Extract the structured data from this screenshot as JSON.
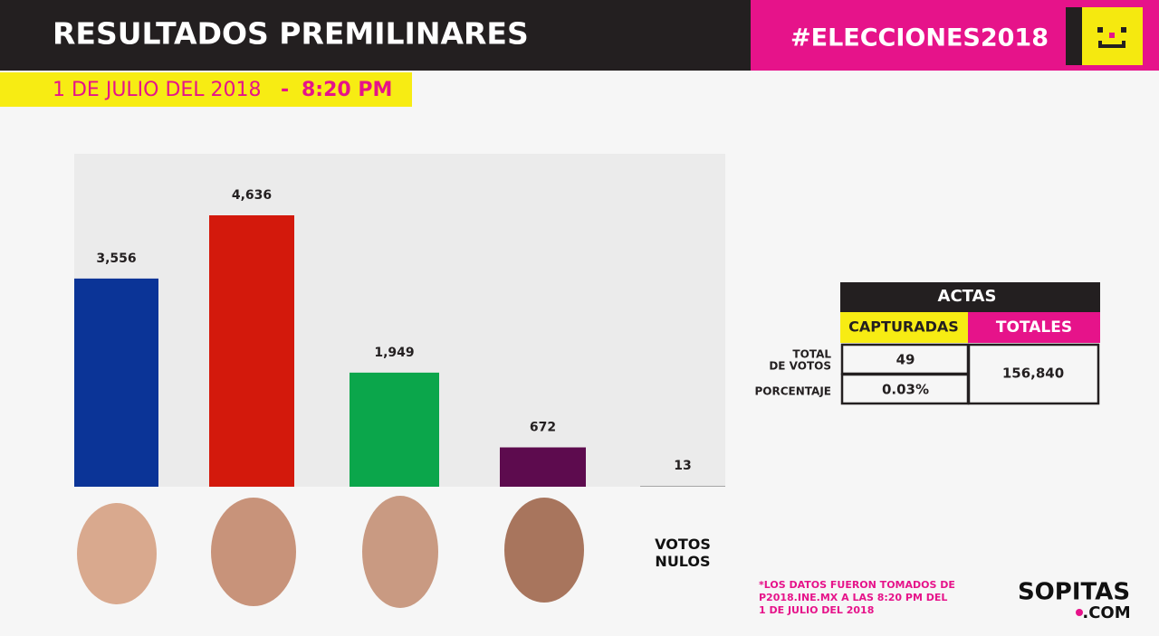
{
  "header": {
    "title": "RESULTADOS PREMILINARES",
    "hashtag": "#ELECCIONES2018",
    "date": "1 DE JULIO DEL 2018",
    "separator": "-",
    "time": "8:20 PM"
  },
  "chart_data": {
    "type": "bar",
    "categories": [
      null,
      null,
      null,
      null,
      "VOTOS NULOS"
    ],
    "values": [
      3556,
      4636,
      1949,
      672,
      13
    ],
    "value_labels": [
      "3,556",
      "4,636",
      "1,949",
      "672",
      "13"
    ],
    "colors": [
      "#0b3497",
      "#d3190c",
      "#0ba64b",
      "#5d0b4e",
      "#9a9a9a"
    ]
  },
  "actas": {
    "title": "ACTAS",
    "col_headers": [
      "CAPTURADAS",
      "TOTALES"
    ],
    "row_labels": [
      [
        "TOTAL",
        "DE VOTOS"
      ],
      [
        "PORCENTAJE"
      ]
    ],
    "captured": [
      "49",
      "0.03%"
    ],
    "total": "156,840"
  },
  "footnote": [
    "*LOS DATOS FUERON TOMADOS DE",
    "P2018.INE.MX A LAS 8:20 PM DEL",
    "1 DE JULIO DEL 2018"
  ],
  "logo": {
    "name": "SOPITAS",
    "domain": ".COM"
  }
}
